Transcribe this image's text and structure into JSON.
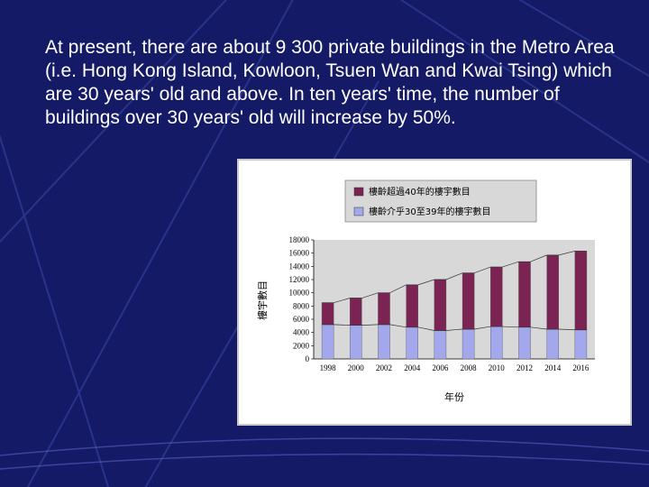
{
  "slide": {
    "text": "At present, there are about 9 300 private buildings in the Metro Area (i.e. Hong Kong Island, Kowloon, Tsuen Wan and Kwai Tsing) which are 30 years' old and above. In ten years' time, the number of buildings over 30 years' old will increase by 50%.",
    "background_color": "#141a66"
  },
  "chart_data": {
    "type": "bar",
    "stacked": true,
    "categories": [
      "1998",
      "2000",
      "2002",
      "2004",
      "2006",
      "2008",
      "2010",
      "2012",
      "2014",
      "2016"
    ],
    "series": [
      {
        "name": "樓齡介乎30至39年的樓宇數目",
        "values": [
          5200,
          5100,
          5200,
          4800,
          4300,
          4500,
          4900,
          4800,
          4500,
          4400
        ],
        "color": "#a3a8ec"
      },
      {
        "name": "樓齡超過40年的樓宇數目",
        "values": [
          3300,
          4100,
          4800,
          6400,
          7700,
          8500,
          9000,
          9900,
          11200,
          11900
        ],
        "color": "#7b2453"
      }
    ],
    "xlabel": "年份",
    "ylabel": "樓宇數目",
    "ylim": [
      0,
      18000
    ],
    "yticks": [
      "0",
      "2000",
      "4000",
      "6000",
      "8000",
      "10000",
      "12000",
      "14000",
      "16000",
      "18000"
    ],
    "plot_background": "#d8d8d8",
    "legend_position": "top"
  }
}
